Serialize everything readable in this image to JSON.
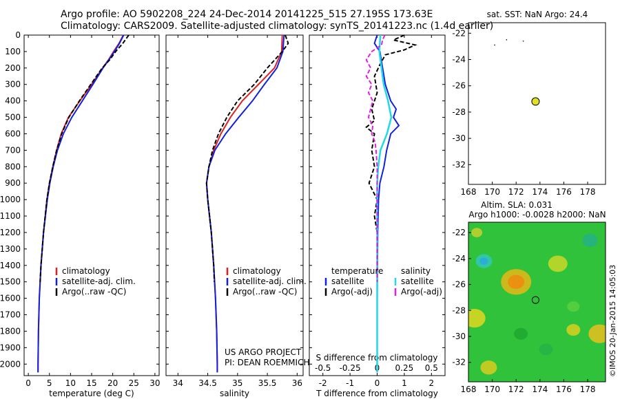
{
  "header": {
    "line1": "Argo profile: AO 5902208_224 24-Dec-2014 20141225_515 27.195S 173.63E",
    "line2": "Climatology: CARS2009. Satellite-adjusted climatology: synTS_20141223.nc (1.4d earlier)"
  },
  "side_label": "©IMOS 20-Jan-2015 14:05:03",
  "project_text": [
    "US ARGO PROJECT",
    "PI: DEAN ROEMMICH"
  ],
  "colors": {
    "climatology": "#e02020",
    "satellite": "#1020e0",
    "argo": "#000000",
    "sat_s": "#20d8e8",
    "argo_s": "#e020e0",
    "map_disc": "#e0e020"
  },
  "depth_axis": {
    "min": 0,
    "max": 2070,
    "ticks": [
      0,
      100,
      200,
      300,
      400,
      500,
      600,
      700,
      800,
      900,
      1000,
      1100,
      1200,
      1300,
      1400,
      1500,
      1600,
      1700,
      1800,
      1900,
      2000
    ]
  },
  "chart_data": [
    {
      "type": "line",
      "name": "temperature_profile",
      "xlabel": "temperature (deg C)",
      "ylabel": "",
      "xlim": [
        -1,
        31
      ],
      "xticks": [
        0,
        5,
        10,
        15,
        20,
        25,
        30
      ],
      "ylim": [
        2070,
        0
      ],
      "legend": [
        "climatology",
        "satellite-adj. clim.",
        "Argo(..raw -QC)"
      ],
      "legend_placement": "lower-center",
      "series": [
        {
          "name": "climatology",
          "depth": [
            0,
            50,
            100,
            150,
            200,
            300,
            400,
            500,
            600,
            700,
            800,
            900,
            1000,
            1200,
            1400,
            1600,
            1800,
            2000,
            2050
          ],
          "values": [
            22.5,
            21.5,
            20.2,
            19.0,
            17.6,
            15.0,
            12.2,
            9.5,
            7.8,
            6.7,
            5.8,
            5.0,
            4.4,
            3.6,
            3.0,
            2.6,
            2.4,
            2.3,
            2.3
          ]
        },
        {
          "name": "satellite-adj. clim.",
          "depth": [
            0,
            50,
            100,
            150,
            200,
            300,
            400,
            500,
            600,
            700,
            800,
            900,
            1000,
            1200,
            1400,
            1600,
            1800,
            2000,
            2050
          ],
          "values": [
            22.6,
            21.6,
            20.4,
            19.1,
            17.7,
            15.3,
            12.8,
            10.3,
            8.3,
            6.9,
            5.9,
            5.1,
            4.5,
            3.6,
            3.0,
            2.6,
            2.4,
            2.3,
            2.3
          ]
        },
        {
          "name": "Argo(..raw -QC)",
          "depth": [
            0,
            50,
            100,
            150,
            200,
            300,
            400,
            500,
            600,
            700,
            800,
            900,
            1000,
            1200,
            1400,
            1500
          ],
          "values": [
            23.8,
            22.4,
            20.7,
            19.3,
            17.5,
            14.8,
            12.1,
            9.6,
            7.9,
            6.7,
            5.8,
            5.0,
            4.4,
            3.6,
            3.0,
            2.8
          ]
        }
      ]
    },
    {
      "type": "line",
      "name": "salinity_profile",
      "xlabel": "salinity",
      "ylabel": "",
      "xlim": [
        33.8,
        36.1
      ],
      "xticks": [
        34,
        34.5,
        35,
        35.5,
        36
      ],
      "ylim": [
        2070,
        0
      ],
      "legend": [
        "climatology",
        "satellite-adj. clim.",
        "Argo(..raw -QC)"
      ],
      "legend_placement": "lower-center",
      "series": [
        {
          "name": "climatology",
          "depth": [
            0,
            100,
            200,
            300,
            400,
            500,
            600,
            700,
            800,
            900,
            1000,
            1200,
            1400,
            1600,
            1800,
            2000,
            2050
          ],
          "values": [
            35.75,
            35.74,
            35.62,
            35.35,
            35.08,
            34.88,
            34.72,
            34.6,
            34.52,
            34.48,
            34.5,
            34.56,
            34.6,
            34.63,
            34.65,
            34.66,
            34.66
          ]
        },
        {
          "name": "satellite-adj. clim.",
          "depth": [
            0,
            100,
            200,
            300,
            400,
            500,
            600,
            700,
            800,
            900,
            1000,
            1200,
            1400,
            1600,
            1800,
            2000,
            2050
          ],
          "values": [
            35.78,
            35.76,
            35.66,
            35.45,
            35.25,
            35.02,
            34.8,
            34.62,
            34.52,
            34.48,
            34.5,
            34.56,
            34.6,
            34.63,
            34.65,
            34.66,
            34.66
          ]
        },
        {
          "name": "Argo(..raw -QC)",
          "depth": [
            0,
            50,
            100,
            200,
            300,
            400,
            500,
            600,
            700,
            800,
            900,
            1000,
            1200,
            1400,
            1500
          ],
          "values": [
            35.8,
            35.85,
            35.75,
            35.5,
            35.28,
            35.0,
            34.82,
            34.68,
            34.58,
            34.52,
            34.48,
            34.5,
            34.56,
            34.6,
            34.61
          ]
        }
      ]
    },
    {
      "type": "line",
      "name": "difference_profile",
      "xlabel": "T difference from climatology",
      "xlabel_top": "S difference from climatology",
      "xlim": [
        -2.5,
        2.5
      ],
      "xticks": [
        -2,
        -1,
        0,
        1,
        2
      ],
      "xticks_s": [
        -0.5,
        -0.25,
        0,
        0.25,
        0.5
      ],
      "ylim": [
        2070,
        0
      ],
      "legend": [
        "temperature",
        "satellite",
        "Argo(-adj)",
        "salinity",
        "satellite",
        "Argo(-adj)"
      ],
      "legend_placement": "lower-center",
      "series": [
        {
          "name": "satellite",
          "group": "temperature",
          "depth": [
            0,
            50,
            100,
            200,
            300,
            400,
            450,
            500,
            550,
            600,
            700,
            800,
            900,
            1000,
            1200,
            1400,
            1600,
            1800,
            2000,
            2050
          ],
          "values": [
            0,
            -0.1,
            0.1,
            0.2,
            0.3,
            0.5,
            0.7,
            0.6,
            0.8,
            0.5,
            0.35,
            0.25,
            0.1,
            0.05,
            0.02,
            0.01,
            0.0,
            0.0,
            0.0,
            0.0
          ]
        },
        {
          "name": "Argo(-adj)",
          "group": "temperature",
          "depth": [
            0,
            30,
            60,
            90,
            120,
            180,
            250,
            350,
            450,
            520,
            560,
            600,
            700,
            800,
            900,
            1000,
            1100,
            1200,
            1300,
            1400,
            1500
          ],
          "values": [
            1.0,
            0.6,
            1.4,
            1.0,
            0.3,
            0.1,
            -0.1,
            0.0,
            -0.2,
            -0.1,
            -0.4,
            -0.1,
            -0.2,
            -0.1,
            -0.3,
            0.0,
            -0.1,
            0.0,
            0.0,
            0.0,
            0.0
          ]
        },
        {
          "name": "satellite",
          "group": "salinity",
          "depth": [
            0,
            100,
            200,
            300,
            400,
            500,
            600,
            700,
            800,
            900,
            1000,
            1200,
            1400,
            1600,
            1800,
            2000,
            2050
          ],
          "values": [
            0.03,
            0.02,
            0.04,
            0.06,
            0.1,
            0.13,
            0.09,
            0.03,
            0.01,
            0.0,
            0.0,
            0.0,
            0.0,
            0.0,
            0.0,
            0.0,
            0.0
          ]
        },
        {
          "name": "Argo(-adj)",
          "group": "salinity",
          "depth": [
            0,
            30,
            60,
            100,
            150,
            200,
            250,
            300,
            350,
            400,
            450,
            500,
            550,
            600,
            650,
            700,
            800,
            900,
            1000,
            1100,
            1200,
            1300,
            1400,
            1500
          ],
          "values": [
            0.07,
            0.05,
            0.04,
            -0.05,
            -0.1,
            -0.06,
            -0.1,
            -0.05,
            -0.08,
            -0.04,
            -0.06,
            -0.08,
            -0.04,
            -0.05,
            -0.02,
            -0.01,
            0.0,
            0.0,
            0.0,
            0.0,
            0.0,
            0.0,
            0.0,
            0.0
          ]
        }
      ]
    },
    {
      "type": "scatter",
      "name": "sst_map",
      "title": "sat. SST: NaN Argo: 24.4",
      "xlim": [
        168,
        179.5
      ],
      "ylim": [
        -33.5,
        -21.2
      ],
      "xticks": [
        168,
        170,
        172,
        174,
        176,
        178
      ],
      "yticks": [
        -22,
        -24,
        -26,
        -28,
        -30,
        -32
      ],
      "profile_position": [
        173.63,
        -27.195
      ]
    },
    {
      "type": "heatmap",
      "name": "sla_map",
      "title": [
        "Altim. SLA: 0.031",
        "Argo h1000: -0.0028 h2000: NaN"
      ],
      "xlim": [
        168,
        179.5
      ],
      "ylim": [
        -33.5,
        -21.2
      ],
      "xticks": [
        168,
        170,
        172,
        174,
        176,
        178
      ],
      "yticks": [
        -22,
        -24,
        -26,
        -28,
        -30,
        -32
      ],
      "profile_position": [
        173.63,
        -27.195
      ]
    }
  ]
}
